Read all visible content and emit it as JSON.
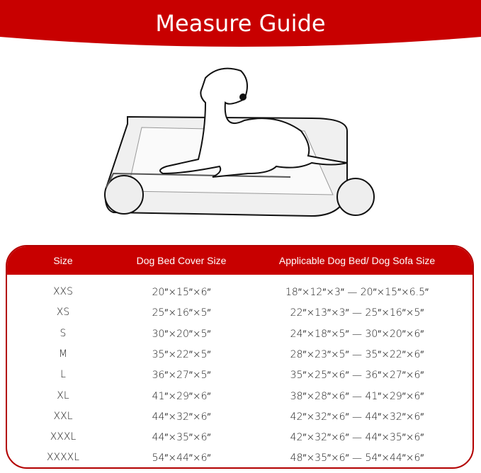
{
  "title": "Measure Guide",
  "colors": {
    "accent": "#c80000"
  },
  "table": {
    "headers": [
      "Size",
      "Dog Bed Cover Size",
      "Applicable Dog Bed/ Dog Sofa Size"
    ],
    "rows": [
      [
        "XXS",
        "20″×15″×6″",
        "18″×12″×3″ — 20″×15″×6.5″"
      ],
      [
        "XS",
        "25″×16″×5″",
        "22″×13″×3″ — 25″×16″×5″"
      ],
      [
        "S",
        "30″×20″×5″",
        "24″×18″×5″ — 30″×20″×6″"
      ],
      [
        "M",
        "35″×22″×5″",
        "28″×23″×5″ — 35″×22″×6″"
      ],
      [
        "L",
        "36″×27″×5″",
        "35″×25″×6″ — 36″×27″×6″"
      ],
      [
        "XL",
        "41″×29″×6″",
        "38″×28″×6″ — 41″×29″×6″"
      ],
      [
        "XXL",
        "44″×32″×6″",
        "42″×32″×6″ — 44″×32″×6″"
      ],
      [
        "XXXL",
        "44″×35″×6″",
        "42″×32″×6″ — 44″×35″×6″"
      ],
      [
        "XXXXL",
        "54″×44″×6″",
        "48″×35″×6″ — 54″×44″×6″"
      ]
    ]
  }
}
